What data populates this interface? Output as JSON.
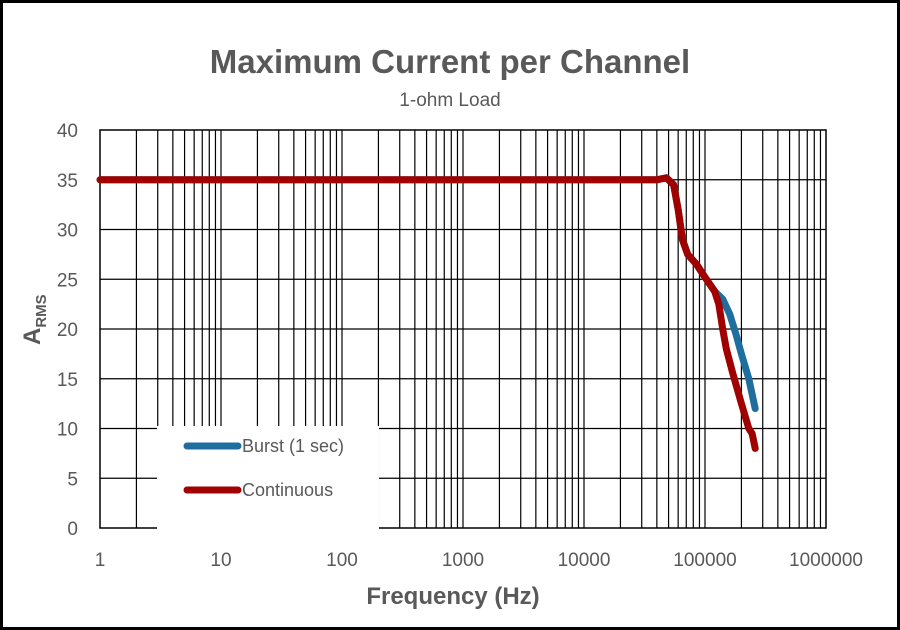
{
  "chart_data": {
    "type": "line",
    "title": "Maximum Current per Channel",
    "subtitle": "1-ohm Load",
    "xlabel": "Frequency (Hz)",
    "ylabel_main": "A",
    "ylabel_sub": "RMS",
    "x_scale": "log",
    "xlim": [
      1,
      1000000
    ],
    "ylim": [
      0,
      40
    ],
    "grid": true,
    "legend_position": "bottom-left",
    "x_ticks": [
      "1",
      "10",
      "100",
      "1000",
      "10000",
      "100000",
      "1000000"
    ],
    "y_ticks": [
      "0",
      "5",
      "10",
      "15",
      "20",
      "25",
      "30",
      "35",
      "40"
    ],
    "series": [
      {
        "name": "Burst (1 sec)",
        "color": "#1F6E9E",
        "x": [
          1,
          10,
          100,
          1000,
          10000,
          40000,
          48000,
          55000,
          60000,
          65000,
          72000,
          85000,
          100000,
          120000,
          140000,
          160000,
          180000,
          200000,
          230000,
          260000
        ],
        "y": [
          35,
          35,
          35,
          35,
          35,
          35,
          35.2,
          34.5,
          32,
          29,
          27.5,
          26.5,
          25.2,
          23.8,
          23,
          21.5,
          19.5,
          17.5,
          15,
          12
        ]
      },
      {
        "name": "Continuous",
        "color": "#A00000",
        "x": [
          1,
          10,
          100,
          1000,
          10000,
          40000,
          48000,
          55000,
          60000,
          65000,
          72000,
          85000,
          100000,
          120000,
          130000,
          140000,
          150000,
          170000,
          200000,
          230000,
          245000,
          260000
        ],
        "y": [
          35,
          35,
          35,
          35,
          35,
          35,
          35.2,
          34.5,
          32,
          29,
          27.5,
          26.5,
          25.2,
          23.8,
          22.5,
          20,
          18,
          15.5,
          12.5,
          10,
          9.5,
          8
        ]
      }
    ]
  }
}
